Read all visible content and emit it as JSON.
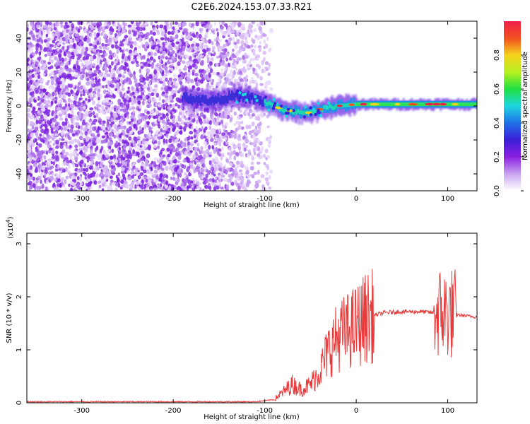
{
  "title": "C2E6.2024.153.07.33.R21",
  "chart_data": [
    {
      "type": "heatmap",
      "xlabel": "Height of straight line (km)",
      "ylabel": "Frequency (Hz)",
      "xlim": [
        -360,
        132
      ],
      "ylim": [
        -50,
        50
      ],
      "x_ticks": [
        -300,
        -200,
        -100,
        0,
        100
      ],
      "y_ticks": [
        -40,
        -20,
        0,
        20,
        40
      ],
      "noise_region_x": [
        -360,
        -100
      ],
      "signal_start_x": -190,
      "signal_track": [
        {
          "x": -190,
          "freq": 5
        },
        {
          "x": -160,
          "freq": 3
        },
        {
          "x": -130,
          "freq": 6
        },
        {
          "x": -115,
          "freq": 5
        },
        {
          "x": -100,
          "freq": 2
        },
        {
          "x": -90,
          "freq": 0
        },
        {
          "x": -80,
          "freq": -2
        },
        {
          "x": -70,
          "freq": -3
        },
        {
          "x": -60,
          "freq": -4
        },
        {
          "x": -50,
          "freq": -4
        },
        {
          "x": -40,
          "freq": -2
        },
        {
          "x": -30,
          "freq": -1
        },
        {
          "x": -20,
          "freq": 0
        },
        {
          "x": 0,
          "freq": 1
        },
        {
          "x": 50,
          "freq": 1
        },
        {
          "x": 100,
          "freq": 1
        },
        {
          "x": 132,
          "freq": 1
        }
      ],
      "colorbar": {
        "label": "Normalized spectral amplitude",
        "ticks": [
          "0.0",
          "0.2",
          "0.4",
          "0.6",
          "0.8"
        ],
        "range": [
          0,
          1
        ],
        "colors": [
          "#ffffff",
          "#c9a4f2",
          "#8b1fe0",
          "#3c1fd8",
          "#1f6fe8",
          "#1fd6e0",
          "#1fe040",
          "#b8f01f",
          "#f5d21f",
          "#f0501f",
          "#f01f4a"
        ]
      }
    },
    {
      "type": "line",
      "xlabel": "Height of straight line (km)",
      "ylabel": "SNR (10 * v/v)",
      "y_exponent": "(x10",
      "y_exponent_power": "4",
      "y_exponent_close": ")",
      "xlim": [
        -360,
        132
      ],
      "ylim": [
        0,
        3.2
      ],
      "x_ticks": [
        -300,
        -200,
        -100,
        0,
        100
      ],
      "y_ticks": [
        0,
        1,
        2,
        3
      ],
      "color": "#e83a3a",
      "series": [
        {
          "values": [
            {
              "x": -360,
              "y": 0.02
            },
            {
              "x": -200,
              "y": 0.02
            },
            {
              "x": -110,
              "y": 0.02
            },
            {
              "x": -90,
              "y": 0.06
            },
            {
              "x": -80,
              "y": 0.2
            },
            {
              "x": -70,
              "y": 0.35
            },
            {
              "x": -60,
              "y": 0.25
            },
            {
              "x": -50,
              "y": 0.35
            },
            {
              "x": -40,
              "y": 0.6
            },
            {
              "x": -30,
              "y": 1.0
            },
            {
              "x": -20,
              "y": 1.25
            },
            {
              "x": -10,
              "y": 1.35
            },
            {
              "x": 0,
              "y": 1.45
            },
            {
              "x": 10,
              "y": 1.6
            },
            {
              "x": 20,
              "y": 1.65
            },
            {
              "x": 30,
              "y": 1.7
            },
            {
              "x": 50,
              "y": 1.72
            },
            {
              "x": 70,
              "y": 1.72
            },
            {
              "x": 85,
              "y": 1.7
            },
            {
              "x": 100,
              "y": 1.7
            },
            {
              "x": 115,
              "y": 1.65
            },
            {
              "x": 132,
              "y": 1.62
            }
          ]
        }
      ]
    }
  ]
}
